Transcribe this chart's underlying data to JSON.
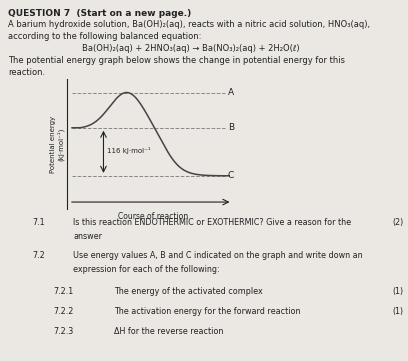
{
  "title_question": "QUESTION 7  (Start on a new page.)",
  "text_line1": "A barium hydroxide solution, Ba(OH)₂(aq), reacts with a nitric acid solution, HNO₃(aq),",
  "text_line2": "according to the following balanced equation:",
  "equation": "Ba(OH)₂(aq) + 2HNO₃(aq) → Ba(NO₃)₂(aq) + 2H₂O(ℓ)",
  "text_line3": "The potential energy graph below shows the change in potential energy for this",
  "text_line4": "reaction.",
  "ylabel": "Potential energy\n(kJ·mol⁻¹)",
  "xlabel": "Course of reaction",
  "label_A": "A",
  "label_B": "B",
  "label_C": "C",
  "energy_label": "116 kJ·mol⁻¹",
  "q71_num": "7.1",
  "q72_num": "7.2",
  "q721_num": "7.2.1",
  "q721_text": "The energy of the activated complex",
  "q721_mark": "(1)",
  "q722_num": "7.2.2",
  "q722_text": "The activation energy for the forward reaction",
  "q722_mark": "(1)",
  "q723_num": "7.2.3",
  "q723_text": "ΔH for the reverse reaction",
  "background": "#ebe8e3",
  "line_color": "#444444",
  "dashed_color": "#888888",
  "text_color": "#222222"
}
